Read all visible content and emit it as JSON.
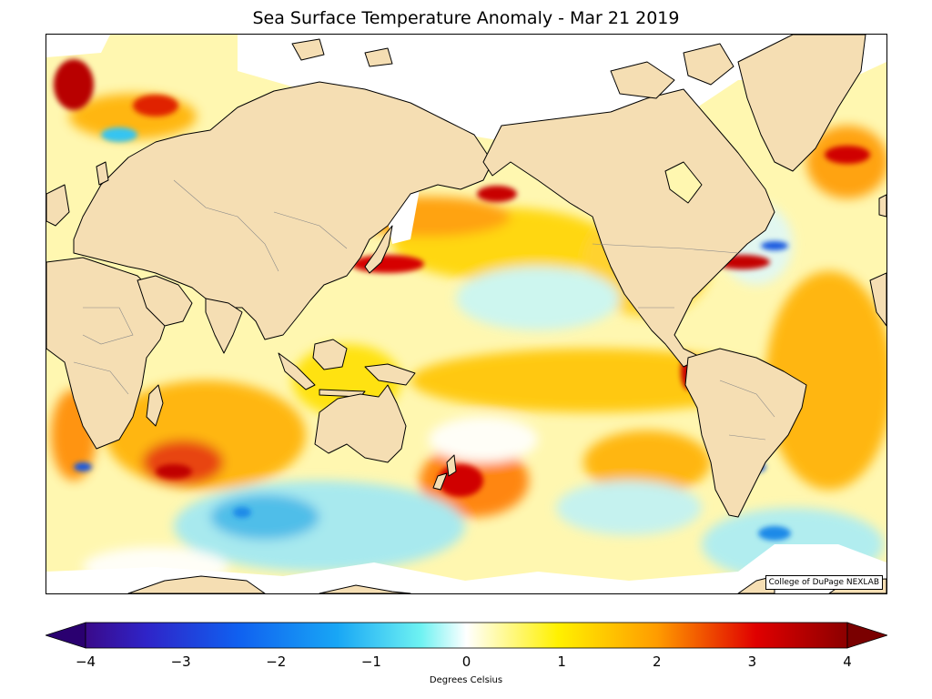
{
  "title": "Sea Surface Temperature Anomaly - Mar 21 2019",
  "credit": "College of DuPage NEXLAB",
  "colorbar": {
    "label": "Degrees Celsius",
    "range": [
      -4,
      4
    ],
    "ticks": [
      "−4",
      "−3",
      "−2",
      "−1",
      "0",
      "1",
      "2",
      "3",
      "4"
    ],
    "extend": "both",
    "colors": [
      "#3a0a8a",
      "#2f24c8",
      "#1060f0",
      "#18a6f5",
      "#6ef2f2",
      "#ffffff",
      "#fff100",
      "#ff9c00",
      "#e00000",
      "#8c0000"
    ]
  },
  "map": {
    "land_color": "#f5deb3",
    "coast_color": "#000000",
    "border_color": "#888888",
    "no_data_color": "#ffffff"
  }
}
